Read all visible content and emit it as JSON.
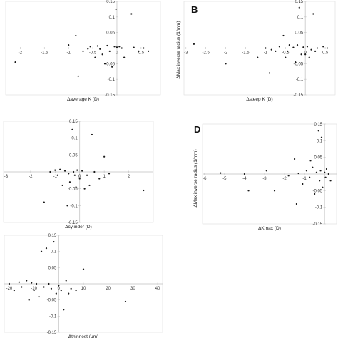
{
  "chart_data": [
    {
      "id": "A",
      "panel_label": "",
      "type": "scatter",
      "xlabel": "Δaverage K (D)",
      "ylabel": "",
      "xlim": [
        -2.3,
        0.9
      ],
      "ylim": [
        -0.15,
        0.15
      ],
      "x_ticks": [
        -2,
        -1.5,
        -1,
        -0.5,
        0,
        0.5
      ],
      "x_tick_labels": [
        "-2",
        "-1.5",
        "-1",
        "-0.5",
        "0",
        "0.5"
      ],
      "y_ticks": [
        -0.15,
        -0.1,
        -0.05,
        0.05,
        0.1,
        0.15
      ],
      "y_tick_labels": [
        "-0.15",
        "-0.1",
        "-0.05",
        "0.05",
        "0.1",
        "0.15"
      ],
      "points": [
        [
          -2.1,
          -0.045
        ],
        [
          -1.0,
          0.01
        ],
        [
          -0.85,
          0.04
        ],
        [
          -0.8,
          -0.09
        ],
        [
          -0.6,
          -0.002
        ],
        [
          -0.55,
          0.005
        ],
        [
          -0.4,
          0.007
        ],
        [
          -0.35,
          -0.003
        ],
        [
          -0.3,
          -0.02
        ],
        [
          -0.25,
          -0.05
        ],
        [
          -0.2,
          0.008
        ],
        [
          -0.15,
          -0.01
        ],
        [
          -0.1,
          -0.06
        ],
        [
          -0.05,
          0.005
        ],
        [
          -0.02,
          0.125
        ],
        [
          0.0,
          0.003
        ],
        [
          0.05,
          0.005
        ],
        [
          0.1,
          0.0
        ],
        [
          0.15,
          -0.03
        ],
        [
          0.3,
          0.11
        ],
        [
          0.35,
          0.002
        ],
        [
          0.45,
          -0.01
        ],
        [
          0.55,
          0.0
        ],
        [
          0.65,
          -0.01
        ],
        [
          -0.45,
          -0.03
        ],
        [
          -0.7,
          -0.01
        ]
      ]
    },
    {
      "id": "B",
      "panel_label": "B",
      "type": "scatter",
      "xlabel": "Δsteep K (D)",
      "ylabel": "ΔMax inverse radius (1/mm)",
      "xlim": [
        -3.05,
        0.75
      ],
      "ylim": [
        -0.15,
        0.15
      ],
      "x_ticks": [
        -3,
        -2.5,
        -2,
        -1.5,
        -1,
        -0.5,
        0,
        0.5
      ],
      "x_tick_labels": [
        "-3",
        "-2.5",
        "-2",
        "-1.5",
        "-1",
        "-0.5",
        "0",
        "0.5"
      ],
      "y_ticks": [
        -0.15,
        -0.1,
        -0.05,
        0.05,
        0.1,
        0.15
      ],
      "y_tick_labels": [
        "-0.15",
        "-0.1",
        "-0.05",
        "0.05",
        "0.1",
        "0.15"
      ],
      "points": [
        [
          -2.8,
          0.013
        ],
        [
          -2.0,
          -0.05
        ],
        [
          -1.2,
          -0.03
        ],
        [
          -1.0,
          0.0
        ],
        [
          -0.9,
          -0.08
        ],
        [
          -0.85,
          -0.005
        ],
        [
          -0.75,
          -0.01
        ],
        [
          -0.65,
          0.005
        ],
        [
          -0.55,
          0.04
        ],
        [
          -0.5,
          -0.03
        ],
        [
          -0.45,
          -0.01
        ],
        [
          -0.4,
          0.01
        ],
        [
          -0.3,
          0.002
        ],
        [
          -0.25,
          -0.045
        ],
        [
          -0.2,
          0.01
        ],
        [
          -0.15,
          0.13
        ],
        [
          -0.1,
          -0.02
        ],
        [
          -0.05,
          0.003
        ],
        [
          0.0,
          -0.02
        ],
        [
          0.05,
          0.005
        ],
        [
          0.1,
          -0.03
        ],
        [
          0.15,
          -0.005
        ],
        [
          0.2,
          0.11
        ],
        [
          0.25,
          -0.01
        ],
        [
          0.3,
          0.0
        ],
        [
          0.45,
          0.005
        ],
        [
          0.55,
          0.0
        ]
      ]
    },
    {
      "id": "C",
      "panel_label": "",
      "type": "scatter",
      "xlabel": "Δcylinder (D)",
      "ylabel": "",
      "xlim": [
        -3.1,
        3.0
      ],
      "ylim": [
        -0.15,
        0.15
      ],
      "x_ticks": [
        -3,
        -2,
        -1,
        0,
        1,
        2
      ],
      "x_tick_labels": [
        "-3",
        "-2",
        "-1",
        "0",
        "1",
        "2"
      ],
      "y_ticks": [
        -0.15,
        -0.1,
        -0.05,
        0.05,
        0.1,
        0.15
      ],
      "y_tick_labels": [
        "-0.15",
        "-0.1",
        "-0.05",
        "0.05",
        "0.1",
        "0.15"
      ],
      "points": [
        [
          -1.45,
          -0.09
        ],
        [
          -1.2,
          0.0
        ],
        [
          -1.0,
          0.005
        ],
        [
          -0.9,
          -0.01
        ],
        [
          -0.8,
          0.007
        ],
        [
          -0.7,
          -0.04
        ],
        [
          -0.6,
          0.003
        ],
        [
          -0.5,
          -0.1
        ],
        [
          -0.45,
          -0.005
        ],
        [
          -0.4,
          -0.03
        ],
        [
          -0.3,
          0.125
        ],
        [
          -0.25,
          0.0
        ],
        [
          -0.2,
          -0.01
        ],
        [
          -0.1,
          0.005
        ],
        [
          0.0,
          -0.02
        ],
        [
          0.1,
          0.003
        ],
        [
          0.2,
          -0.05
        ],
        [
          0.3,
          -0.01
        ],
        [
          0.4,
          -0.04
        ],
        [
          0.5,
          0.11
        ],
        [
          0.6,
          0.0
        ],
        [
          0.8,
          -0.02
        ],
        [
          1.0,
          0.045
        ],
        [
          1.2,
          -0.005
        ],
        [
          2.6,
          -0.055
        ],
        [
          -0.15,
          -0.045
        ]
      ]
    },
    {
      "id": "D",
      "panel_label": "D",
      "type": "scatter",
      "xlabel": "ΔKmax (D)",
      "ylabel": "ΔMax inverse radius (1/mm)",
      "xlim": [
        -6.1,
        0.6
      ],
      "ylim": [
        -0.15,
        0.15
      ],
      "x_ticks": [
        -6,
        -5,
        -4,
        -3,
        -2,
        -1
      ],
      "x_tick_labels": [
        "-6",
        "-5",
        "-4",
        "-3",
        "-2",
        "-1"
      ],
      "y_ticks": [
        -0.15,
        -0.1,
        -0.05,
        0.05,
        0.1,
        0.15
      ],
      "y_tick_labels": [
        "-0.15",
        "-0.1",
        "-0.05",
        "0.05",
        "0.1",
        "0.15"
      ],
      "points": [
        [
          -5.2,
          0.003
        ],
        [
          -4.0,
          0.0
        ],
        [
          -3.8,
          -0.05
        ],
        [
          -2.9,
          0.01
        ],
        [
          -2.5,
          -0.05
        ],
        [
          -1.8,
          -0.005
        ],
        [
          -1.5,
          0.045
        ],
        [
          -1.4,
          -0.09
        ],
        [
          -1.3,
          0.002
        ],
        [
          -1.1,
          -0.03
        ],
        [
          -0.9,
          0.01
        ],
        [
          -0.75,
          -0.01
        ],
        [
          -0.6,
          0.02
        ],
        [
          -0.5,
          -0.06
        ],
        [
          -0.4,
          0.005
        ],
        [
          -0.3,
          0.13
        ],
        [
          -0.25,
          -0.02
        ],
        [
          -0.2,
          0.01
        ],
        [
          -0.15,
          0.11
        ],
        [
          -0.1,
          -0.04
        ],
        [
          0.0,
          0.005
        ],
        [
          0.05,
          -0.01
        ],
        [
          0.1,
          0.015
        ],
        [
          0.2,
          0.0
        ],
        [
          0.3,
          -0.02
        ],
        [
          -0.7,
          0.04
        ]
      ]
    },
    {
      "id": "E",
      "panel_label": "",
      "type": "scatter",
      "xlabel": "Δthinnest (μm)",
      "ylabel": "",
      "xlim": [
        -22,
        42
      ],
      "ylim": [
        -0.15,
        0.15
      ],
      "x_ticks": [
        -20,
        -10,
        0,
        10,
        20,
        30,
        40
      ],
      "x_tick_labels": [
        "-20",
        "-10",
        "0",
        "10",
        "20",
        "30",
        "40"
      ],
      "y_ticks": [
        -0.15,
        -0.1,
        -0.05,
        0.05,
        0.1,
        0.15
      ],
      "y_tick_labels": [
        "-0.15",
        "-0.1",
        "-0.05",
        "0.05",
        "0.1",
        "0.15"
      ],
      "points": [
        [
          -20,
          0.0
        ],
        [
          -18,
          -0.02
        ],
        [
          -16,
          0.005
        ],
        [
          -15,
          -0.01
        ],
        [
          -13,
          0.01
        ],
        [
          -12,
          -0.05
        ],
        [
          -11,
          0.003
        ],
        [
          -10,
          -0.02
        ],
        [
          -9,
          0.0
        ],
        [
          -8,
          -0.04
        ],
        [
          -7,
          0.1
        ],
        [
          -6,
          -0.01
        ],
        [
          -5,
          0.11
        ],
        [
          -4,
          0.0
        ],
        [
          -3,
          -0.015
        ],
        [
          -2,
          0.13
        ],
        [
          -1,
          -0.03
        ],
        [
          0,
          -0.005
        ],
        [
          1,
          -0.02
        ],
        [
          2,
          -0.08
        ],
        [
          3,
          0.01
        ],
        [
          4,
          -0.03
        ],
        [
          5,
          -0.015
        ],
        [
          7,
          -0.02
        ],
        [
          10,
          0.045
        ],
        [
          27,
          -0.055
        ]
      ]
    }
  ]
}
